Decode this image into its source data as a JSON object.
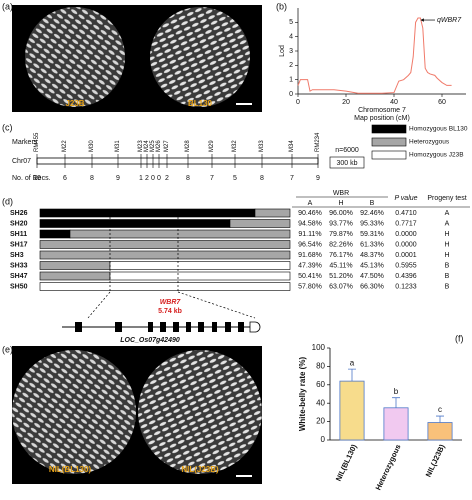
{
  "panel_a": {
    "label": "(a)",
    "left_caption": "J23B",
    "right_caption": "BL130"
  },
  "markers_map": {
    "label": "(c)",
    "row_labels": [
      "Markers",
      "Chr07",
      "No. of Recs."
    ],
    "markers": [
      "RM455",
      "M22",
      "M30",
      "M31",
      "M23",
      "M24",
      "M25",
      "M26",
      "M27",
      "M28",
      "M29",
      "M32",
      "M33",
      "M34",
      "RM234"
    ],
    "recombinants": [
      10,
      6,
      8,
      9,
      1,
      2,
      0,
      0,
      2,
      8,
      7,
      5,
      8,
      7,
      9
    ],
    "sample_size": "n=6000",
    "scale": "300 kb",
    "legend": [
      "Homozygous BL130",
      "Heterozygous",
      "Homozygous J23B"
    ]
  },
  "genotypes": {
    "label": "(d)",
    "header": {
      "group": "WBR",
      "columns": [
        "A",
        "H",
        "B"
      ],
      "p": "P value",
      "progeny": "Progeny test"
    },
    "rows": [
      [
        "SH26",
        "90.46%",
        "96.00%",
        "92.46%",
        "0.4710",
        "A"
      ],
      [
        "SH20",
        "94.58%",
        "93.77%",
        "95.33%",
        "0.7717",
        "A"
      ],
      [
        "SH11",
        "91.11%",
        "79.87%",
        "59.31%",
        "0.0000",
        "H"
      ],
      [
        "SH17",
        "96.54%",
        "82.26%",
        "61.33%",
        "0.0000",
        "H"
      ],
      [
        "SH3",
        "91.68%",
        "76.17%",
        "48.37%",
        "0.0001",
        "H"
      ],
      [
        "SH33",
        "47.39%",
        "45.11%",
        "45.13%",
        "0.5955",
        "B"
      ],
      [
        "SH47",
        "50.41%",
        "51.20%",
        "47.50%",
        "0.4396",
        "B"
      ],
      [
        "SH50",
        "57.80%",
        "63.07%",
        "66.30%",
        "0.1233",
        "B"
      ]
    ]
  },
  "gene": {
    "name": "WBR7",
    "size": "5.74 kb",
    "locus": "LOC_Os07g42490"
  },
  "panel_e": {
    "label": "(e)",
    "left_caption": "NIL(BL130)",
    "right_caption": "NIL(J23B)"
  },
  "chart_data": [
    {
      "type": "line",
      "panel_label": "(b)",
      "ylabel": "Lod",
      "xlabel": [
        "Chromosome 7",
        "Map position (cM)"
      ],
      "annotation": "qWBR7",
      "color": "#f07a6a",
      "x": [
        0,
        1,
        2,
        4,
        5,
        6,
        10,
        15,
        20,
        25,
        30,
        35,
        40,
        42,
        44,
        46,
        47,
        48,
        49,
        50,
        51,
        52,
        53,
        54,
        55,
        57,
        58,
        60,
        62,
        64
      ],
      "values": [
        0.6,
        1.0,
        1.0,
        1.0,
        0.2,
        0.3,
        0.3,
        0.3,
        0.2,
        0.05,
        0.05,
        0.05,
        0.1,
        0.9,
        1.0,
        1.3,
        1.5,
        2.6,
        5.0,
        5.3,
        5.3,
        4.6,
        1.8,
        1.5,
        1.4,
        1.3,
        1.1,
        0.8,
        0.6,
        0.6
      ],
      "xlim": [
        0,
        70
      ],
      "xticks": [
        0,
        20,
        40,
        60
      ],
      "ylim": [
        0,
        6
      ],
      "yticks": [
        0,
        1,
        2,
        3,
        4,
        5
      ]
    },
    {
      "type": "bar",
      "panel_label": "(f)",
      "ylabel": "White-belly rate (%)",
      "categories": [
        "NIL(BL130)",
        "Heterozygous",
        "NIL(J23B)"
      ],
      "values": [
        64,
        35,
        19
      ],
      "errors": [
        13,
        11,
        7
      ],
      "annotations": [
        "a",
        "b",
        "c"
      ],
      "colors": [
        "#f7dc8c",
        "#f1c9f0",
        "#f9c17a"
      ],
      "edge_color": "#4f78c8",
      "ylim": [
        0,
        100
      ],
      "yticks": [
        0,
        20,
        40,
        60,
        80,
        100
      ]
    }
  ]
}
